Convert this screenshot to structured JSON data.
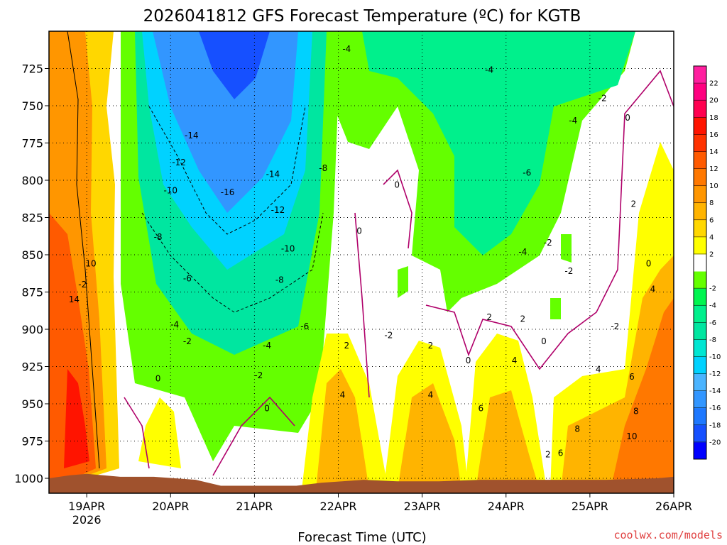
{
  "chart_data": {
    "type": "heatmap",
    "title": "2026041812 GFS Forecast Temperature (ºC) for KGTB",
    "xlabel": "Forecast Time (UTC)",
    "ylabel": "",
    "credit": "coolwx.com/models",
    "x_range_days": [
      -0.45,
      7.0
    ],
    "x_ticks": [
      {
        "day": 0,
        "label": "19APR",
        "sub": "2026"
      },
      {
        "day": 1,
        "label": "20APR",
        "sub": ""
      },
      {
        "day": 2,
        "label": "21APR",
        "sub": ""
      },
      {
        "day": 3,
        "label": "22APR",
        "sub": ""
      },
      {
        "day": 4,
        "label": "23APR",
        "sub": ""
      },
      {
        "day": 5,
        "label": "24APR",
        "sub": ""
      },
      {
        "day": 6,
        "label": "25APR",
        "sub": ""
      },
      {
        "day": 7,
        "label": "26APR",
        "sub": ""
      }
    ],
    "y_range_hpa": [
      700,
      1010
    ],
    "y_ticks": [
      "725",
      "750",
      "775",
      "800",
      "825",
      "850",
      "875",
      "900",
      "925",
      "950",
      "975",
      "1000"
    ],
    "grid": true,
    "colorbar": {
      "min": -22,
      "max": 24,
      "step": 2,
      "labels": [
        "22",
        "20",
        "18",
        "16",
        "14",
        "12",
        "10",
        "8",
        "6",
        "4",
        "2",
        "-2",
        "-4",
        "-6",
        "-8",
        "-10",
        "-12",
        "-14",
        "-16",
        "-18",
        "-20"
      ],
      "colors": [
        "#0000ff",
        "#1650ff",
        "#1e78ff",
        "#3296ff",
        "#4bb4ff",
        "#00d2ff",
        "#00e6d2",
        "#00e6a0",
        "#00f08c",
        "#00f550",
        "#64ff00",
        "#ffffff",
        "#ffff00",
        "#ffd700",
        "#ffb400",
        "#ff9600",
        "#ff7800",
        "#ff5a00",
        "#ff3200",
        "#ff1400",
        "#ff0050",
        "#ff0080",
        "#ff1f9f"
      ]
    },
    "surface_pressure_hpa": [
      {
        "day": -0.45,
        "p": 1000
      },
      {
        "day": -0.2,
        "p": 998
      },
      {
        "day": 0.0,
        "p": 997
      },
      {
        "day": 0.4,
        "p": 999
      },
      {
        "day": 0.8,
        "p": 999
      },
      {
        "day": 1.3,
        "p": 1001
      },
      {
        "day": 1.6,
        "p": 1005
      },
      {
        "day": 2.0,
        "p": 1005
      },
      {
        "day": 2.5,
        "p": 1005
      },
      {
        "day": 2.8,
        "p": 1003
      },
      {
        "day": 3.3,
        "p": 1001
      },
      {
        "day": 3.7,
        "p": 1002
      },
      {
        "day": 4.2,
        "p": 1002
      },
      {
        "day": 4.7,
        "p": 1001
      },
      {
        "day": 5.2,
        "p": 1001
      },
      {
        "day": 6.2,
        "p": 1001
      },
      {
        "day": 6.8,
        "p": 1000
      },
      {
        "day": 7.0,
        "p": 999
      }
    ],
    "contour_labels": [
      {
        "t": "-4",
        "day": 3.1,
        "p": 712
      },
      {
        "t": "-4",
        "day": 4.8,
        "p": 726
      },
      {
        "t": "-2",
        "day": 6.15,
        "p": 745
      },
      {
        "t": "0",
        "day": 6.45,
        "p": 758
      },
      {
        "t": "-4",
        "day": 5.8,
        "p": 760
      },
      {
        "t": "-14",
        "day": 1.25,
        "p": 770
      },
      {
        "t": "-12",
        "day": 1.1,
        "p": 788
      },
      {
        "t": "-8",
        "day": 2.82,
        "p": 792
      },
      {
        "t": "-6",
        "day": 5.25,
        "p": 795
      },
      {
        "t": "0",
        "day": 3.7,
        "p": 803
      },
      {
        "t": "-14",
        "day": 2.22,
        "p": 796
      },
      {
        "t": "-10",
        "day": 1.0,
        "p": 807
      },
      {
        "t": "-16",
        "day": 1.68,
        "p": 808
      },
      {
        "t": "2",
        "day": 6.52,
        "p": 816
      },
      {
        "t": "-12",
        "day": 2.28,
        "p": 820
      },
      {
        "t": "0",
        "day": 3.25,
        "p": 834
      },
      {
        "t": "-8",
        "day": 0.85,
        "p": 838
      },
      {
        "t": "-2",
        "day": 5.5,
        "p": 842
      },
      {
        "t": "-10",
        "day": 2.4,
        "p": 846
      },
      {
        "t": "-4",
        "day": 5.2,
        "p": 848
      },
      {
        "t": "10",
        "day": 0.05,
        "p": 856
      },
      {
        "t": "0",
        "day": 6.7,
        "p": 856
      },
      {
        "t": "-2",
        "day": 5.75,
        "p": 861
      },
      {
        "t": "-2",
        "day": -0.05,
        "p": 870
      },
      {
        "t": "-6",
        "day": 1.2,
        "p": 866
      },
      {
        "t": "-8",
        "day": 2.3,
        "p": 867
      },
      {
        "t": "14",
        "day": -0.15,
        "p": 880
      },
      {
        "t": "4",
        "day": 6.75,
        "p": 873
      },
      {
        "t": "2",
        "day": 4.8,
        "p": 892
      },
      {
        "t": "-4",
        "day": 1.05,
        "p": 897
      },
      {
        "t": "-2",
        "day": 6.3,
        "p": 898
      },
      {
        "t": "-6",
        "day": 2.6,
        "p": 898
      },
      {
        "t": "2",
        "day": 5.2,
        "p": 893
      },
      {
        "t": "-2",
        "day": 3.6,
        "p": 904
      },
      {
        "t": "0",
        "day": 5.45,
        "p": 908
      },
      {
        "t": "-2",
        "day": 1.2,
        "p": 908
      },
      {
        "t": "2",
        "day": 3.1,
        "p": 911
      },
      {
        "t": "2",
        "day": 4.1,
        "p": 911
      },
      {
        "t": "-4",
        "day": 2.15,
        "p": 911
      },
      {
        "t": "0",
        "day": 4.55,
        "p": 921
      },
      {
        "t": "4",
        "day": 5.1,
        "p": 921
      },
      {
        "t": "4",
        "day": 6.1,
        "p": 927
      },
      {
        "t": "0",
        "day": 0.85,
        "p": 933
      },
      {
        "t": "-2",
        "day": 2.05,
        "p": 931
      },
      {
        "t": "6",
        "day": 6.5,
        "p": 932
      },
      {
        "t": "4",
        "day": 3.05,
        "p": 944
      },
      {
        "t": "4",
        "day": 4.1,
        "p": 944
      },
      {
        "t": "6",
        "day": 4.7,
        "p": 953
      },
      {
        "t": "0",
        "day": 2.15,
        "p": 953
      },
      {
        "t": "8",
        "day": 6.55,
        "p": 955
      },
      {
        "t": "8",
        "day": 5.85,
        "p": 967
      },
      {
        "t": "10",
        "day": 6.5,
        "p": 972
      },
      {
        "t": "6",
        "day": 5.65,
        "p": 983
      },
      {
        "t": "2",
        "day": 5.5,
        "p": 984
      }
    ]
  }
}
